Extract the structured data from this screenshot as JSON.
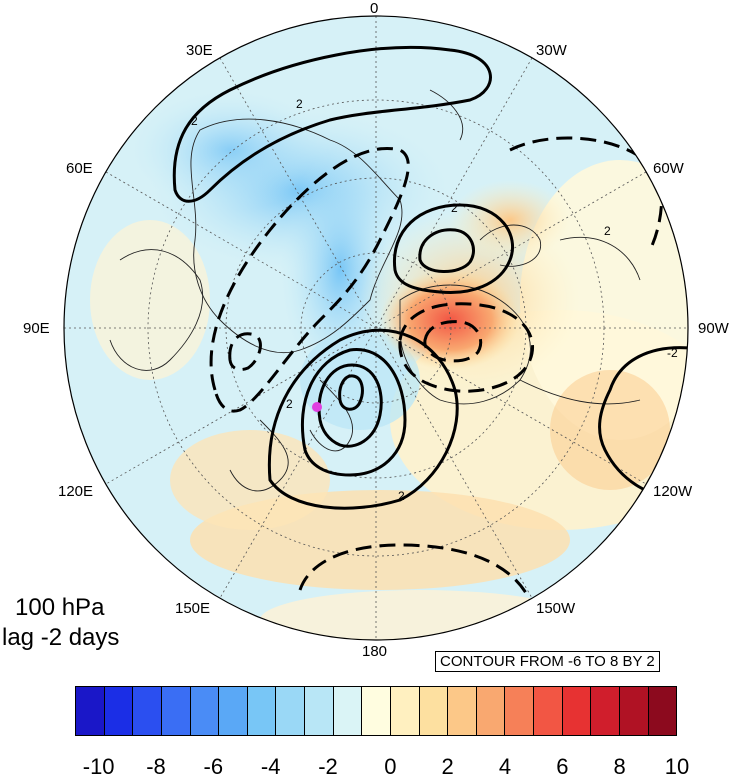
{
  "panel": {
    "level": "100 hPa",
    "lag": "lag -2 days"
  },
  "contour_info": "CONTOUR FROM -6 TO 8 BY 2",
  "longitude_labels": {
    "top": "0",
    "bottom": "180",
    "left": "90E",
    "right": "90W",
    "upper_left_1": "30E",
    "upper_left_2": "60E",
    "lower_left_1": "120E",
    "lower_left_2": "150E",
    "upper_right_1": "30W",
    "upper_right_2": "60W",
    "lower_right_1": "120W",
    "lower_right_2": "150W"
  },
  "contour_labels": [
    "2",
    "2",
    "2",
    "2",
    "2",
    "2",
    "-2"
  ],
  "marker_color": "#e040e0",
  "colorbar": {
    "ticks": [
      "-10",
      "-8",
      "-6",
      "-4",
      "-2",
      "0",
      "2",
      "4",
      "6",
      "8",
      "10"
    ],
    "colors": [
      "#1a17c8",
      "#1b2ee6",
      "#2b4ff0",
      "#3a6ef4",
      "#4a8cf6",
      "#5aa8f6",
      "#78c6f6",
      "#9ad8f6",
      "#b8e6f6",
      "#daf4f6",
      "#fffde0",
      "#fff0c0",
      "#fde0a0",
      "#fcc888",
      "#f9a870",
      "#f68058",
      "#f25644",
      "#e73232",
      "#d01e2c",
      "#b01224",
      "#8c0a1e"
    ]
  }
}
